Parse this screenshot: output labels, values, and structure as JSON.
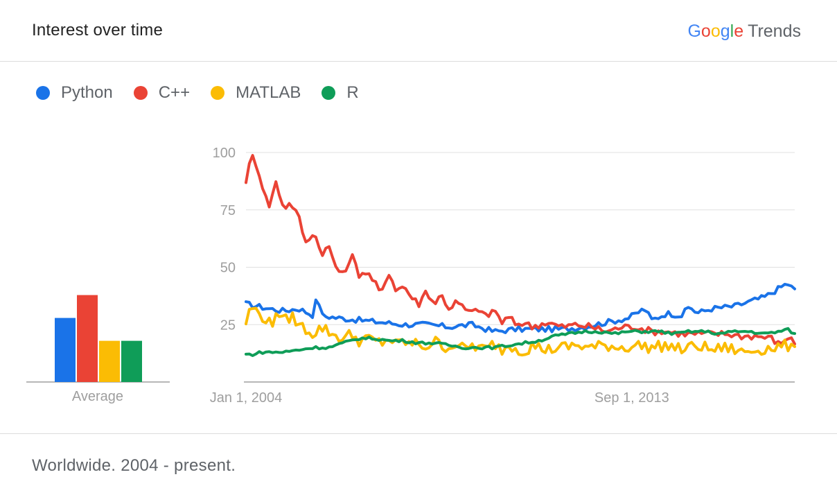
{
  "header": {
    "title": "Interest over time",
    "brand_google": "Google",
    "brand_trends": "Trends"
  },
  "legend": [
    {
      "name": "Python",
      "color": "#1a73e8"
    },
    {
      "name": "C++",
      "color": "#ea4335"
    },
    {
      "name": "MATLAB",
      "color": "#fbbc04"
    },
    {
      "name": "R",
      "color": "#0f9d58"
    }
  ],
  "footer": "Worldwide. 2004 - present.",
  "chart_data": [
    {
      "type": "bar",
      "xlabel": "Average",
      "series": [
        {
          "name": "Python",
          "value": 28,
          "color": "#1a73e8"
        },
        {
          "name": "C++",
          "value": 38,
          "color": "#ea4335"
        },
        {
          "name": "MATLAB",
          "value": 18,
          "color": "#fbbc04"
        },
        {
          "name": "R",
          "value": 18,
          "color": "#0f9d58"
        }
      ]
    },
    {
      "type": "line",
      "ylim": [
        0,
        100
      ],
      "yticks": [
        25,
        50,
        75,
        100
      ],
      "xtick_labels": [
        "Jan 1, 2004",
        "Sep 1, 2013"
      ],
      "x_start": "2004-01",
      "x_end": "2017-10",
      "grid": true,
      "series": [
        {
          "name": "Python",
          "color": "#1a73e8",
          "keypoints": [
            [
              0,
              34
            ],
            [
              3,
              33
            ],
            [
              6,
              32
            ],
            [
              10,
              31
            ],
            [
              14,
              32
            ],
            [
              18,
              29
            ],
            [
              19,
              39
            ],
            [
              20,
              29
            ],
            [
              24,
              28
            ],
            [
              30,
              27
            ],
            [
              36,
              26
            ],
            [
              42,
              25
            ],
            [
              48,
              25
            ],
            [
              54,
              24
            ],
            [
              60,
              25
            ],
            [
              66,
              22
            ],
            [
              72,
              23
            ],
            [
              78,
              23
            ],
            [
              84,
              23
            ],
            [
              90,
              24
            ],
            [
              96,
              26
            ],
            [
              102,
              28
            ],
            [
              106,
              32
            ],
            [
              108,
              27
            ],
            [
              112,
              30
            ],
            [
              116,
              29
            ],
            [
              118,
              33
            ],
            [
              120,
              30
            ],
            [
              124,
              32
            ],
            [
              130,
              33
            ],
            [
              134,
              35
            ],
            [
              138,
              37
            ],
            [
              140,
              39
            ],
            [
              142,
              41
            ],
            [
              144,
              43
            ],
            [
              146,
              40
            ]
          ]
        },
        {
          "name": "C++",
          "color": "#ea4335",
          "keypoints": [
            [
              0,
              88
            ],
            [
              1,
              95
            ],
            [
              2,
              99
            ],
            [
              4,
              88
            ],
            [
              6,
              76
            ],
            [
              8,
              87
            ],
            [
              10,
              76
            ],
            [
              12,
              78
            ],
            [
              14,
              72
            ],
            [
              16,
              60
            ],
            [
              18,
              66
            ],
            [
              20,
              56
            ],
            [
              22,
              59
            ],
            [
              24,
              50
            ],
            [
              26,
              46
            ],
            [
              28,
              56
            ],
            [
              30,
              47
            ],
            [
              32,
              48
            ],
            [
              34,
              44
            ],
            [
              36,
              38
            ],
            [
              38,
              48
            ],
            [
              40,
              40
            ],
            [
              42,
              42
            ],
            [
              44,
              37
            ],
            [
              46,
              34
            ],
            [
              48,
              40
            ],
            [
              50,
              34
            ],
            [
              52,
              38
            ],
            [
              54,
              32
            ],
            [
              56,
              35
            ],
            [
              58,
              32
            ],
            [
              60,
              30
            ],
            [
              62,
              32
            ],
            [
              64,
              28
            ],
            [
              66,
              32
            ],
            [
              68,
              26
            ],
            [
              70,
              28
            ],
            [
              72,
              25
            ],
            [
              74,
              26
            ],
            [
              76,
              24
            ],
            [
              80,
              26
            ],
            [
              84,
              24
            ],
            [
              88,
              25
            ],
            [
              92,
              24
            ],
            [
              96,
              22
            ],
            [
              100,
              24
            ],
            [
              104,
              24
            ],
            [
              108,
              22
            ],
            [
              112,
              22
            ],
            [
              116,
              21
            ],
            [
              120,
              21
            ],
            [
              124,
              21
            ],
            [
              128,
              21
            ],
            [
              132,
              20
            ],
            [
              136,
              20
            ],
            [
              140,
              19
            ],
            [
              142,
              16
            ],
            [
              144,
              20
            ],
            [
              146,
              17
            ]
          ]
        },
        {
          "name": "MATLAB",
          "color": "#fbbc04",
          "keypoints": [
            [
              0,
              26
            ],
            [
              1,
              31
            ],
            [
              2,
              33
            ],
            [
              3,
              30
            ],
            [
              5,
              28
            ],
            [
              7,
              24
            ],
            [
              8,
              32
            ],
            [
              10,
              26
            ],
            [
              12,
              29
            ],
            [
              14,
              25
            ],
            [
              16,
              23
            ],
            [
              18,
              21
            ],
            [
              20,
              24
            ],
            [
              22,
              22
            ],
            [
              24,
              20
            ],
            [
              26,
              19
            ],
            [
              28,
              21
            ],
            [
              30,
              18
            ],
            [
              32,
              19
            ],
            [
              34,
              18
            ],
            [
              36,
              17
            ],
            [
              38,
              19
            ],
            [
              40,
              16
            ],
            [
              42,
              18
            ],
            [
              44,
              16
            ],
            [
              46,
              17
            ],
            [
              48,
              15
            ],
            [
              50,
              18
            ],
            [
              52,
              16
            ],
            [
              54,
              15
            ],
            [
              56,
              17
            ],
            [
              58,
              14
            ],
            [
              60,
              16
            ],
            [
              62,
              15
            ],
            [
              64,
              14
            ],
            [
              66,
              17
            ],
            [
              68,
              14
            ],
            [
              70,
              16
            ],
            [
              72,
              15
            ],
            [
              74,
              13
            ],
            [
              76,
              16
            ],
            [
              78,
              15
            ],
            [
              80,
              14
            ],
            [
              84,
              15
            ],
            [
              88,
              16
            ],
            [
              92,
              15
            ],
            [
              96,
              16
            ],
            [
              100,
              15
            ],
            [
              104,
              16
            ],
            [
              108,
              15
            ],
            [
              112,
              16
            ],
            [
              116,
              14
            ],
            [
              120,
              16
            ],
            [
              124,
              14
            ],
            [
              128,
              15
            ],
            [
              132,
              13
            ],
            [
              136,
              14
            ],
            [
              140,
              15
            ],
            [
              144,
              16
            ],
            [
              146,
              13
            ]
          ]
        },
        {
          "name": "R",
          "color": "#0f9d58",
          "keypoints": [
            [
              0,
              12
            ],
            [
              2,
              12
            ],
            [
              4,
              13
            ],
            [
              6,
              13
            ],
            [
              10,
              13
            ],
            [
              14,
              14
            ],
            [
              18,
              15
            ],
            [
              22,
              15
            ],
            [
              26,
              17
            ],
            [
              30,
              19
            ],
            [
              34,
              19
            ],
            [
              38,
              18
            ],
            [
              42,
              18
            ],
            [
              46,
              17
            ],
            [
              50,
              17
            ],
            [
              54,
              16
            ],
            [
              58,
              15
            ],
            [
              62,
              15
            ],
            [
              66,
              15
            ],
            [
              70,
              16
            ],
            [
              74,
              17
            ],
            [
              78,
              18
            ],
            [
              82,
              20
            ],
            [
              86,
              21
            ],
            [
              90,
              22
            ],
            [
              94,
              22
            ],
            [
              98,
              21
            ],
            [
              102,
              22
            ],
            [
              106,
              22
            ],
            [
              110,
              22
            ],
            [
              114,
              21
            ],
            [
              118,
              22
            ],
            [
              122,
              22
            ],
            [
              126,
              21
            ],
            [
              130,
              22
            ],
            [
              134,
              22
            ],
            [
              138,
              21
            ],
            [
              142,
              22
            ],
            [
              144,
              23
            ],
            [
              146,
              21
            ]
          ]
        }
      ]
    }
  ]
}
